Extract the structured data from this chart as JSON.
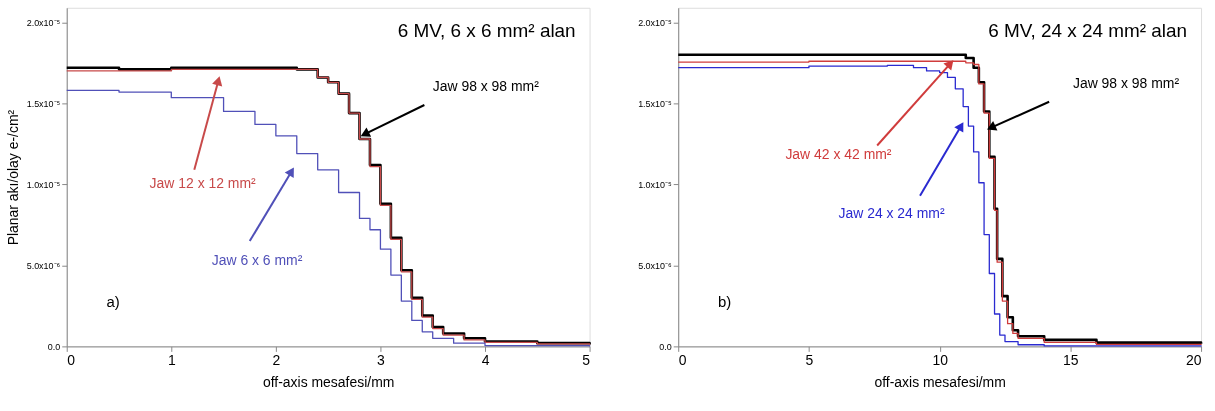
{
  "chart_data": [
    {
      "type": "step",
      "title": "6 MV, 6 x 6 mm² alan",
      "xlabel": "off-axis mesafesi/mm",
      "ylabel": "Planar akı/olay   e-/cm²",
      "annotations": [
        "a)"
      ],
      "grid": false,
      "xlim": [
        0,
        5
      ],
      "xticks": [
        0,
        1,
        2,
        3,
        4,
        5
      ],
      "ylim": [
        0,
        2.09e-05
      ],
      "yticks": [
        {
          "value": 0,
          "label": "0.0"
        },
        {
          "value": 5e-06,
          "label": "5.0x10⁻⁶"
        },
        {
          "value": 1e-05,
          "label": "1.0x10⁻⁵"
        },
        {
          "value": 1.5e-05,
          "label": "1.5x10⁻⁵"
        },
        {
          "value": 2e-05,
          "label": "2.0x10⁻⁵"
        }
      ],
      "series": [
        {
          "name": "Jaw 98 x 98 mm²",
          "color": "#000000",
          "x": [
            0,
            0.5,
            1.0,
            1.5,
            2.0,
            2.2,
            2.4,
            2.5,
            2.6,
            2.7,
            2.8,
            2.9,
            3.0,
            3.1,
            3.2,
            3.3,
            3.4,
            3.5,
            3.6,
            3.8,
            4.0,
            4.5,
            5.0
          ],
          "values": [
            1.72e-05,
            1.71e-05,
            1.72e-05,
            1.72e-05,
            1.72e-05,
            1.71e-05,
            1.66e-05,
            1.63e-05,
            1.56e-05,
            1.44e-05,
            1.28e-05,
            1.12e-05,
            8.8e-06,
            6.7e-06,
            4.7e-06,
            3e-06,
            1.9e-06,
            1.2e-06,
            8e-07,
            5e-07,
            3e-07,
            2e-07,
            1.2e-07
          ]
        },
        {
          "name": "Jaw 12 x 12 mm²",
          "color": "#c84a4a",
          "x": [
            0,
            0.5,
            1.0,
            1.5,
            2.0,
            2.2,
            2.4,
            2.5,
            2.6,
            2.7,
            2.8,
            2.9,
            3.0,
            3.1,
            3.2,
            3.3,
            3.4,
            3.5,
            3.6,
            3.8,
            4.0,
            4.5,
            5.0
          ],
          "values": [
            1.7e-05,
            1.7e-05,
            1.71e-05,
            1.71e-05,
            1.71e-05,
            1.71e-05,
            1.66e-05,
            1.63e-05,
            1.56e-05,
            1.44e-05,
            1.28e-05,
            1.11e-05,
            8.7e-06,
            6.6e-06,
            4.6e-06,
            2.9e-06,
            1.8e-06,
            1.1e-06,
            7e-07,
            4e-07,
            2.5e-07,
            1.5e-07,
            1e-07
          ]
        },
        {
          "name": "Jaw 6 x 6 mm²",
          "color": "#5050b8",
          "x": [
            0,
            0.5,
            1.0,
            1.5,
            1.8,
            2.0,
            2.2,
            2.4,
            2.6,
            2.8,
            2.9,
            3.0,
            3.1,
            3.2,
            3.3,
            3.4,
            3.5,
            3.7,
            4.0,
            5.0
          ],
          "values": [
            1.58e-05,
            1.57e-05,
            1.535e-05,
            1.45e-05,
            1.37e-05,
            1.3e-05,
            1.19e-05,
            1.09e-05,
            9.5e-06,
            7.9e-06,
            7.2e-06,
            6e-06,
            4.4e-06,
            2.8e-06,
            1.6e-06,
            9e-07,
            5e-07,
            2e-07,
            5e-08,
            0.0
          ]
        }
      ]
    },
    {
      "type": "step",
      "title": "6 MV, 24 x 24 mm² alan",
      "xlabel": "off-axis mesafesi/mm",
      "annotations": [
        "b)"
      ],
      "grid": false,
      "xlim": [
        0,
        20
      ],
      "xticks": [
        0,
        5,
        10,
        15,
        20
      ],
      "ylim": [
        0,
        2.09e-05
      ],
      "yticks": [
        {
          "value": 0,
          "label": "0.0"
        },
        {
          "value": 5e-06,
          "label": "5.0x10⁻⁶"
        },
        {
          "value": 1e-05,
          "label": "1.0x10⁻⁵"
        },
        {
          "value": 1.5e-05,
          "label": "1.5x10⁻⁵"
        },
        {
          "value": 2e-05,
          "label": "2.0x10⁻⁵"
        }
      ],
      "series": [
        {
          "name": "Jaw 98 x 98 mm²",
          "color": "#000000",
          "x": [
            0,
            5,
            10.5,
            11,
            11.3,
            11.5,
            11.7,
            11.9,
            12.1,
            12.2,
            12.4,
            12.6,
            12.8,
            13,
            14,
            16,
            20
          ],
          "values": [
            1.8e-05,
            1.8e-05,
            1.8e-05,
            1.78e-05,
            1.72e-05,
            1.63e-05,
            1.45e-05,
            1.17e-05,
            8.5e-06,
            5.4e-06,
            3.1e-06,
            1.8e-06,
            1e-06,
            6.3e-07,
            4e-07,
            2.3e-07,
            1.6e-07
          ]
        },
        {
          "name": "Jaw 42 x 42 mm²",
          "color": "#d03c3c",
          "x": [
            0,
            5,
            10.5,
            11,
            11.3,
            11.5,
            11.7,
            11.9,
            12.1,
            12.2,
            12.4,
            12.6,
            12.8,
            13,
            14,
            16,
            20
          ],
          "values": [
            1.755e-05,
            1.76e-05,
            1.76e-05,
            1.75e-05,
            1.74e-05,
            1.62e-05,
            1.44e-05,
            1.16e-05,
            8.4e-06,
            5.2e-06,
            2.8e-06,
            1.4e-06,
            8e-07,
            5e-07,
            2.5e-07,
            1.2e-07,
            8e-08
          ]
        },
        {
          "name": "Jaw 24 x 24 mm²",
          "color": "#2a2ad0",
          "x": [
            0,
            5,
            8,
            9,
            9.5,
            10,
            10.3,
            10.6,
            10.9,
            11.1,
            11.3,
            11.5,
            11.7,
            11.9,
            12.1,
            12.3,
            12.5,
            13,
            14,
            20
          ],
          "values": [
            1.72e-05,
            1.73e-05,
            1.735e-05,
            1.72e-05,
            1.7e-05,
            1.69e-05,
            1.66e-05,
            1.59e-05,
            1.48e-05,
            1.36e-05,
            1.2e-05,
            1.01e-05,
            6.9e-06,
            4.5e-06,
            2e-06,
            7e-07,
            3e-07,
            1e-07,
            3e-08,
            0.0
          ]
        }
      ]
    }
  ]
}
